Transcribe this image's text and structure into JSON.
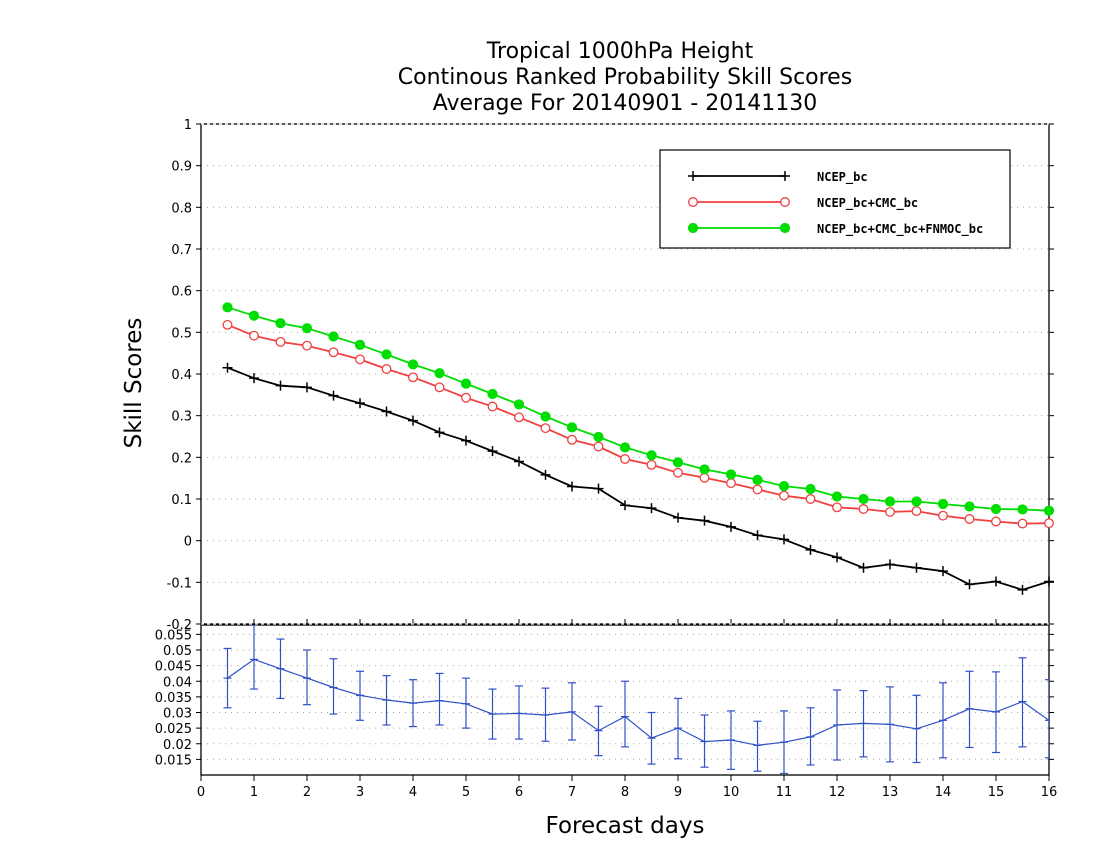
{
  "chart_data": {
    "type": "line",
    "title": [
      "Tropical 1000hPa Height",
      "Continous Ranked Probability Skill Scores",
      "Average For 20140901 - 20141130"
    ],
    "xlabel": "Forecast days",
    "ylabel": "Skill Scores",
    "xlim": [
      0,
      16
    ],
    "x_ticks": [
      "0",
      "1",
      "2",
      "3",
      "4",
      "5",
      "6",
      "7",
      "8",
      "9",
      "10",
      "11",
      "12",
      "13",
      "14",
      "15",
      "16"
    ],
    "upper_panel": {
      "ylim": [
        -0.2,
        1
      ],
      "y_ticks": [
        "-0.2",
        "-0.1",
        "0",
        "0.1",
        "0.2",
        "0.3",
        "0.4",
        "0.5",
        "0.6",
        "0.7",
        "0.8",
        "0.9",
        "1"
      ],
      "grid": true,
      "legend_position": "top-right",
      "x": [
        0.5,
        1,
        1.5,
        2,
        2.5,
        3,
        3.5,
        4,
        4.5,
        5,
        5.5,
        6,
        6.5,
        7,
        7.5,
        8,
        8.5,
        9,
        9.5,
        10,
        10.5,
        11,
        11.5,
        12,
        12.5,
        13,
        13.5,
        14,
        14.5,
        15,
        15.5,
        16
      ],
      "series": [
        {
          "name": "NCEP_bc",
          "color": "#000000",
          "marker": "plus",
          "values": [
            0.415,
            0.39,
            0.372,
            0.368,
            0.348,
            0.33,
            0.31,
            0.288,
            0.26,
            0.24,
            0.215,
            0.19,
            0.158,
            0.13,
            0.125,
            0.085,
            0.078,
            0.055,
            0.048,
            0.033,
            0.013,
            0.003,
            -0.022,
            -0.04,
            -0.065,
            -0.057,
            -0.065,
            -0.073,
            -0.105,
            -0.098,
            -0.118,
            -0.098
          ]
        },
        {
          "name": "NCEP_bc+CMC_bc",
          "color": "#f04040",
          "marker": "open-circle",
          "values": [
            0.518,
            0.492,
            0.477,
            0.468,
            0.452,
            0.435,
            0.412,
            0.392,
            0.368,
            0.343,
            0.322,
            0.296,
            0.27,
            0.242,
            0.226,
            0.196,
            0.182,
            0.163,
            0.151,
            0.138,
            0.123,
            0.108,
            0.1,
            0.08,
            0.076,
            0.069,
            0.071,
            0.06,
            0.052,
            0.046,
            0.041,
            0.042
          ]
        },
        {
          "name": "NCEP_bc+CMC_bc+FNMOC_bc",
          "color": "#00dd00",
          "marker": "filled-circle",
          "values": [
            0.56,
            0.54,
            0.522,
            0.51,
            0.49,
            0.47,
            0.447,
            0.423,
            0.402,
            0.377,
            0.352,
            0.327,
            0.298,
            0.272,
            0.249,
            0.224,
            0.205,
            0.188,
            0.171,
            0.159,
            0.146,
            0.131,
            0.124,
            0.106,
            0.1,
            0.094,
            0.094,
            0.088,
            0.082,
            0.076,
            0.075,
            0.072
          ]
        }
      ]
    },
    "lower_panel": {
      "ylim": [
        0.01,
        0.058
      ],
      "y_ticks": [
        "0.015",
        "0.02",
        "0.025",
        "0.03",
        "0.035",
        "0.04",
        "0.045",
        "0.05",
        "0.055"
      ],
      "grid": true,
      "series": [
        {
          "color": "#3050c8",
          "type": "line-with-errorbars",
          "x": [
            0.5,
            1,
            1.5,
            2,
            2.5,
            3,
            3.5,
            4,
            4.5,
            5,
            5.5,
            6,
            6.5,
            7,
            7.5,
            8,
            8.5,
            9,
            9.5,
            10,
            10.5,
            11,
            11.5,
            12,
            12.5,
            13,
            13.5,
            14,
            14.5,
            15,
            15.5,
            16
          ],
          "values": [
            0.041,
            0.047,
            0.044,
            0.041,
            0.038,
            0.0355,
            0.034,
            0.033,
            0.0338,
            0.0328,
            0.0295,
            0.0297,
            0.0292,
            0.0302,
            0.0242,
            0.0287,
            0.0218,
            0.025,
            0.0207,
            0.0212,
            0.0195,
            0.0205,
            0.0222,
            0.026,
            0.0265,
            0.0262,
            0.0248,
            0.0275,
            0.0312,
            0.0302,
            0.0335,
            0.0275
          ],
          "lower": [
            0.0315,
            0.0375,
            0.0345,
            0.0325,
            0.0295,
            0.0275,
            0.026,
            0.0255,
            0.026,
            0.025,
            0.0215,
            0.0215,
            0.0208,
            0.0212,
            0.0162,
            0.019,
            0.0135,
            0.0152,
            0.0125,
            0.0118,
            0.0112,
            0.0105,
            0.0132,
            0.0148,
            0.0158,
            0.0142,
            0.014,
            0.0155,
            0.0188,
            0.0172,
            0.019,
            0.0155
          ],
          "upper": [
            0.0505,
            0.058,
            0.0535,
            0.05,
            0.0472,
            0.0432,
            0.0418,
            0.0405,
            0.0425,
            0.041,
            0.0375,
            0.0385,
            0.0378,
            0.0395,
            0.032,
            0.04,
            0.03,
            0.0345,
            0.0292,
            0.0305,
            0.0272,
            0.0305,
            0.0315,
            0.0372,
            0.037,
            0.0382,
            0.0355,
            0.0395,
            0.0432,
            0.043,
            0.0475,
            0.0405
          ]
        }
      ]
    }
  }
}
